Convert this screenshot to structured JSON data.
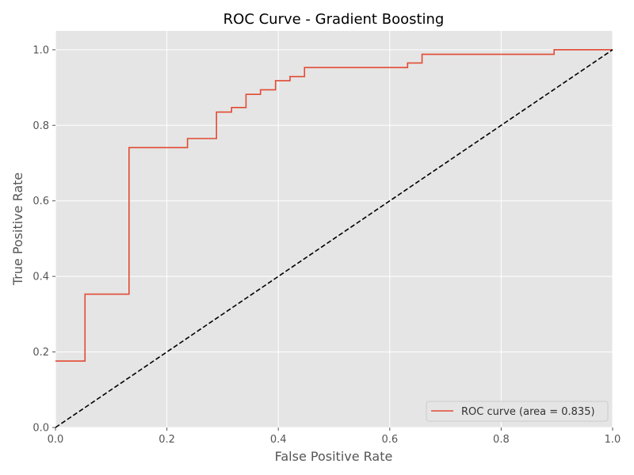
{
  "chart_data": {
    "type": "line",
    "title": "ROC Curve - Gradient Boosting",
    "xlabel": "False Positive Rate",
    "ylabel": "True Positive Rate",
    "xlim": [
      0.0,
      1.0
    ],
    "ylim": [
      0.0,
      1.05
    ],
    "xticks": [
      "0.0",
      "0.2",
      "0.4",
      "0.6",
      "0.8",
      "1.0"
    ],
    "yticks": [
      "0.0",
      "0.2",
      "0.4",
      "0.6",
      "0.8",
      "1.0"
    ],
    "grid": true,
    "legend_position": "lower-right",
    "series": [
      {
        "name": "ROC curve (area = 0.835)",
        "color": "#e24a33",
        "line_style": "solid",
        "step": true,
        "x": [
          0.0,
          0.053,
          0.053,
          0.132,
          0.132,
          0.237,
          0.237,
          0.289,
          0.289,
          0.316,
          0.316,
          0.342,
          0.342,
          0.368,
          0.368,
          0.395,
          0.395,
          0.421,
          0.421,
          0.447,
          0.447,
          0.632,
          0.632,
          0.658,
          0.658,
          0.895,
          0.895,
          1.0
        ],
        "y": [
          0.176,
          0.176,
          0.353,
          0.353,
          0.741,
          0.741,
          0.765,
          0.765,
          0.835,
          0.835,
          0.847,
          0.847,
          0.882,
          0.882,
          0.894,
          0.894,
          0.918,
          0.918,
          0.929,
          0.929,
          0.953,
          0.953,
          0.965,
          0.965,
          0.988,
          0.988,
          1.0,
          1.0
        ]
      },
      {
        "name": "",
        "color": "#000000",
        "line_style": "dashed",
        "step": false,
        "x": [
          0.0,
          1.0
        ],
        "y": [
          0.0,
          1.0
        ]
      }
    ]
  },
  "colors": {
    "plot_background": "#e5e5e5",
    "grid": "#ffffff",
    "roc_line": "#e24a33",
    "diagonal": "#000000"
  }
}
